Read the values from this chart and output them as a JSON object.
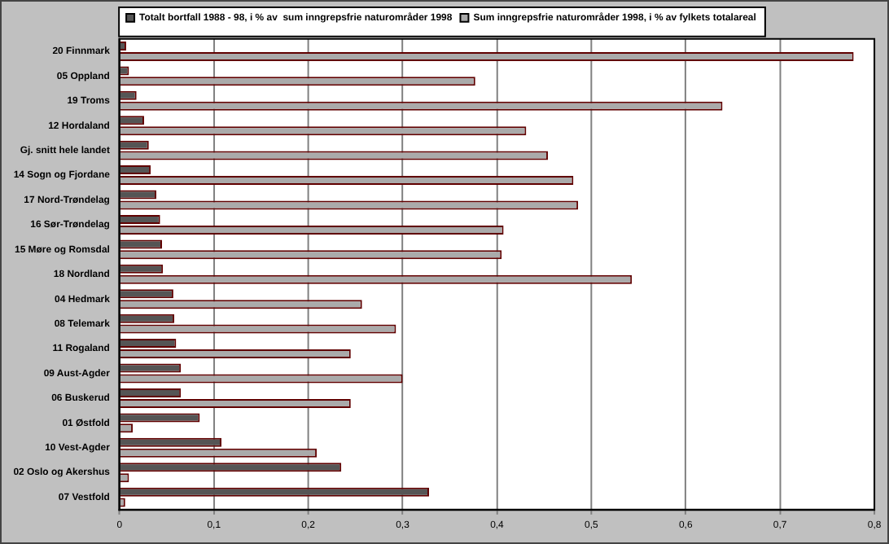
{
  "chart_data": {
    "type": "bar",
    "orientation": "horizontal",
    "categories": [
      "20 Finnmark",
      "05 Oppland",
      "19 Troms",
      "12 Hordaland",
      "Gj. snitt hele landet",
      "14 Sogn og Fjordane",
      "17 Nord-Trøndelag",
      "16 Sør-Trøndelag",
      "15 Møre og Romsdal",
      "18 Nordland",
      "04 Hedmark",
      "08 Telemark",
      "11 Rogaland",
      "09 Aust-Agder",
      "06 Buskerud",
      "01 Østfold",
      "10 Vest-Agder",
      "02 Oslo og Akershus",
      "07 Vestfold"
    ],
    "series": [
      {
        "name": "Totalt bortfall 1988 - 98, i % av  sum inngrepsfrie naturområder 1998",
        "color": "#555555",
        "values": [
          0.007,
          0.01,
          0.018,
          0.026,
          0.031,
          0.033,
          0.039,
          0.043,
          0.045,
          0.046,
          0.057,
          0.058,
          0.06,
          0.065,
          0.065,
          0.085,
          0.108,
          0.235,
          0.328
        ]
      },
      {
        "name": "Sum inngrepsfrie naturområder 1998, i % av fylkets totalareal",
        "color": "#aaaaaa",
        "values": [
          0.778,
          0.377,
          0.639,
          0.431,
          0.454,
          0.481,
          0.486,
          0.407,
          0.405,
          0.543,
          0.257,
          0.293,
          0.245,
          0.3,
          0.245,
          0.014,
          0.209,
          0.01,
          0.006
        ]
      }
    ],
    "xlim": [
      0,
      0.8
    ],
    "xticks": [
      {
        "value": 0,
        "label": "0"
      },
      {
        "value": 0.1,
        "label": "0,1"
      },
      {
        "value": 0.2,
        "label": "0,2"
      },
      {
        "value": 0.3,
        "label": "0,3"
      },
      {
        "value": 0.4,
        "label": "0,4"
      },
      {
        "value": 0.5,
        "label": "0,5"
      },
      {
        "value": 0.6,
        "label": "0,6"
      },
      {
        "value": 0.7,
        "label": "0,7"
      },
      {
        "value": 0.8,
        "label": "0,8"
      }
    ],
    "grid": "x",
    "legend": "top"
  }
}
